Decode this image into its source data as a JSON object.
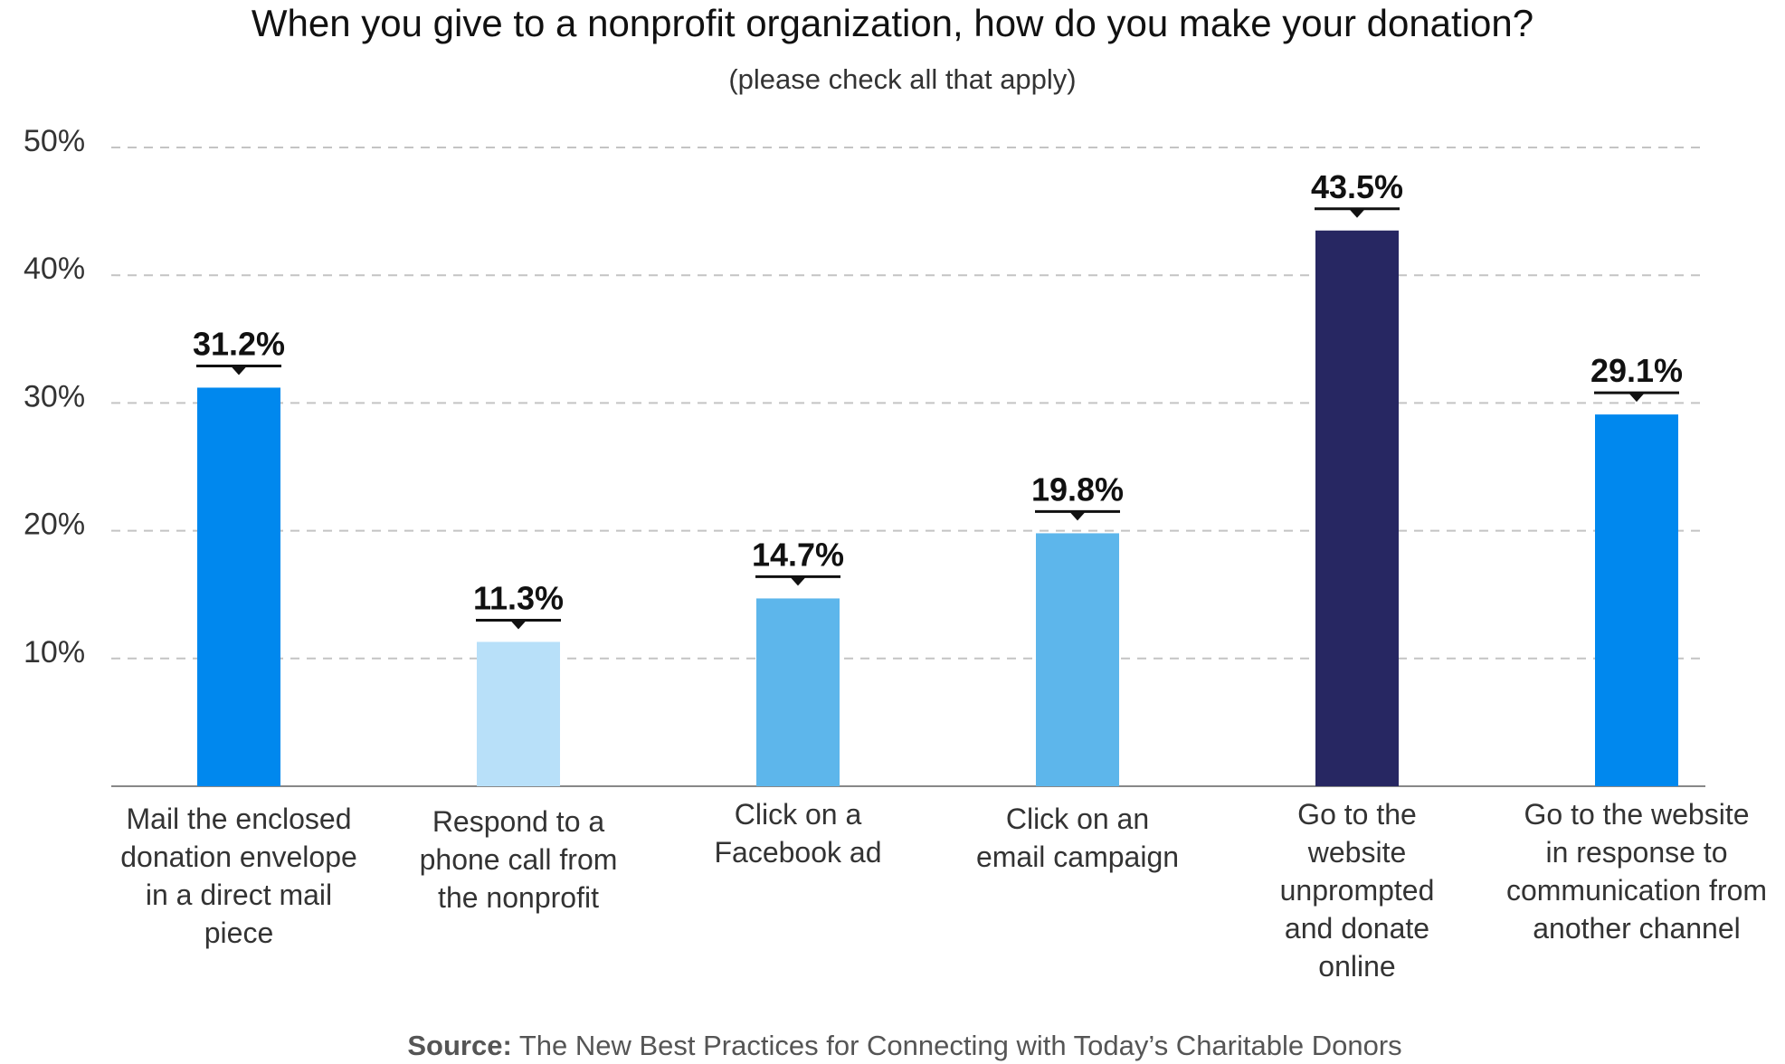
{
  "chart_data": {
    "type": "bar",
    "title": "When you give to a nonprofit organization, how do you make your donation?",
    "subtitle": "(please check all that apply)",
    "xlabel": "",
    "ylabel": "",
    "ylim": [
      0,
      50
    ],
    "grid": true,
    "y_ticks": [
      "10%",
      "20%",
      "30%",
      "40%",
      "50%"
    ],
    "y_tick_values": [
      10,
      20,
      30,
      40,
      50
    ],
    "categories": [
      "Mail the enclosed donation envelope in a direct mail piece",
      "Respond to a phone call from the nonprofit",
      "Click on a Facebook ad",
      "Click on an email campaign",
      "Go to the website unprompted and donate online",
      "Go to the website in response to communication from another channel"
    ],
    "category_lines": [
      [
        "Mail the enclosed",
        "donation envelope",
        "in a direct mail",
        "piece"
      ],
      [
        "Respond to a",
        "phone call from",
        "the nonprofit"
      ],
      [
        "Click on a",
        "Facebook ad"
      ],
      [
        "Click on an",
        "email campaign"
      ],
      [
        "Go to the",
        "website",
        "unprompted",
        "and donate",
        "online"
      ],
      [
        "Go to the website",
        "in response to",
        "communication from",
        "another channel"
      ]
    ],
    "values": [
      31.2,
      11.3,
      14.7,
      19.8,
      43.5,
      29.1
    ],
    "value_labels": [
      "31.2%",
      "11.3%",
      "14.7%",
      "19.8%",
      "43.5%",
      "29.1%"
    ],
    "bar_colors": [
      "#0088ee",
      "#b8e0f9",
      "#5db6eb",
      "#5db6eb",
      "#272762",
      "#0088ee"
    ]
  },
  "source": {
    "label": "Source:",
    "text": "The New Best Practices for Connecting with Today’s Charitable Donors"
  }
}
